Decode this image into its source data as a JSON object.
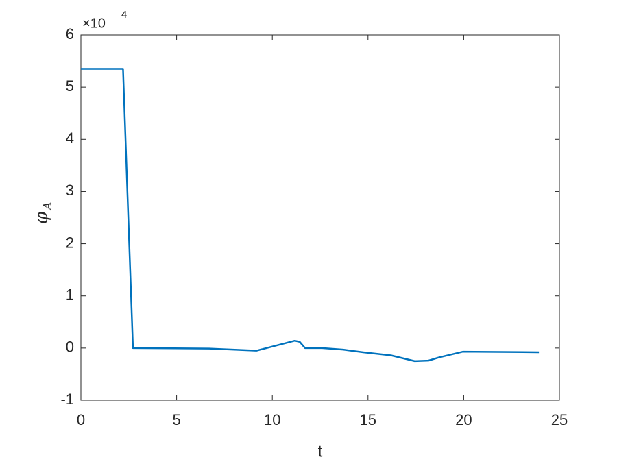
{
  "chart_data": {
    "type": "line",
    "x_label": "t",
    "y_label": "φ",
    "y_label_sub": "A",
    "y_scale_base": "×10",
    "y_scale_exponent": "4",
    "x": [
      0,
      2.2,
      2.72,
      6.7,
      9.17,
      11.17,
      11.43,
      11.71,
      12.6,
      13.7,
      14.75,
      16.2,
      17.44,
      18.16,
      18.7,
      19.95,
      23.93
    ],
    "series": [
      {
        "color": "#0072bd",
        "values": [
          5.35,
          5.35,
          0,
          -0.01,
          -0.05,
          0.14,
          0.12,
          0,
          0,
          -0.03,
          -0.08,
          -0.14,
          -0.25,
          -0.24,
          -0.18,
          -0.07,
          -0.08
        ]
      }
    ],
    "xlim": [
      0,
      25
    ],
    "xticks": [
      0,
      5,
      10,
      15,
      20,
      25
    ],
    "ylim": [
      -1,
      6
    ],
    "yticks": [
      -1,
      0,
      1,
      2,
      3,
      4,
      5,
      6
    ]
  }
}
